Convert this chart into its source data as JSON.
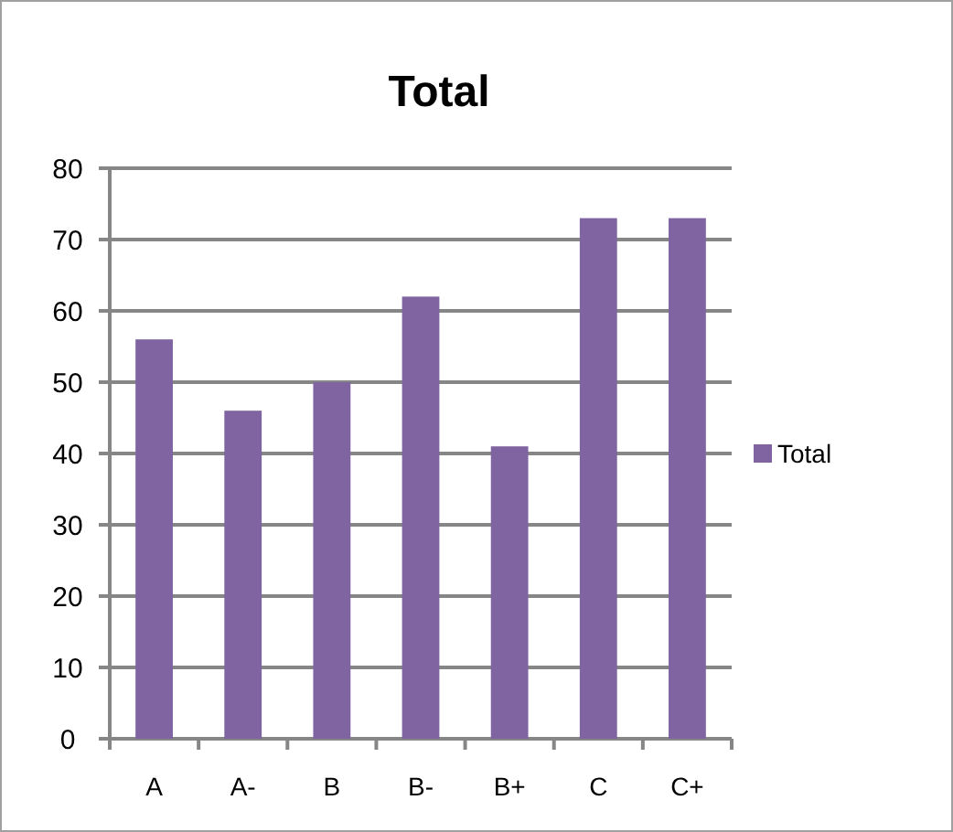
{
  "chart_data": {
    "type": "bar",
    "title": "Total",
    "categories": [
      "A",
      "A-",
      "B",
      "B-",
      "B+",
      "C",
      "C+"
    ],
    "series": [
      {
        "name": "Total",
        "color": "#8064a2",
        "values": [
          56,
          46,
          50,
          62,
          41,
          73,
          73
        ]
      }
    ],
    "ylim": [
      0,
      80
    ],
    "yticks": [
      0,
      10,
      20,
      30,
      40,
      50,
      60,
      70,
      80
    ],
    "grid": "y",
    "legend": "right"
  }
}
